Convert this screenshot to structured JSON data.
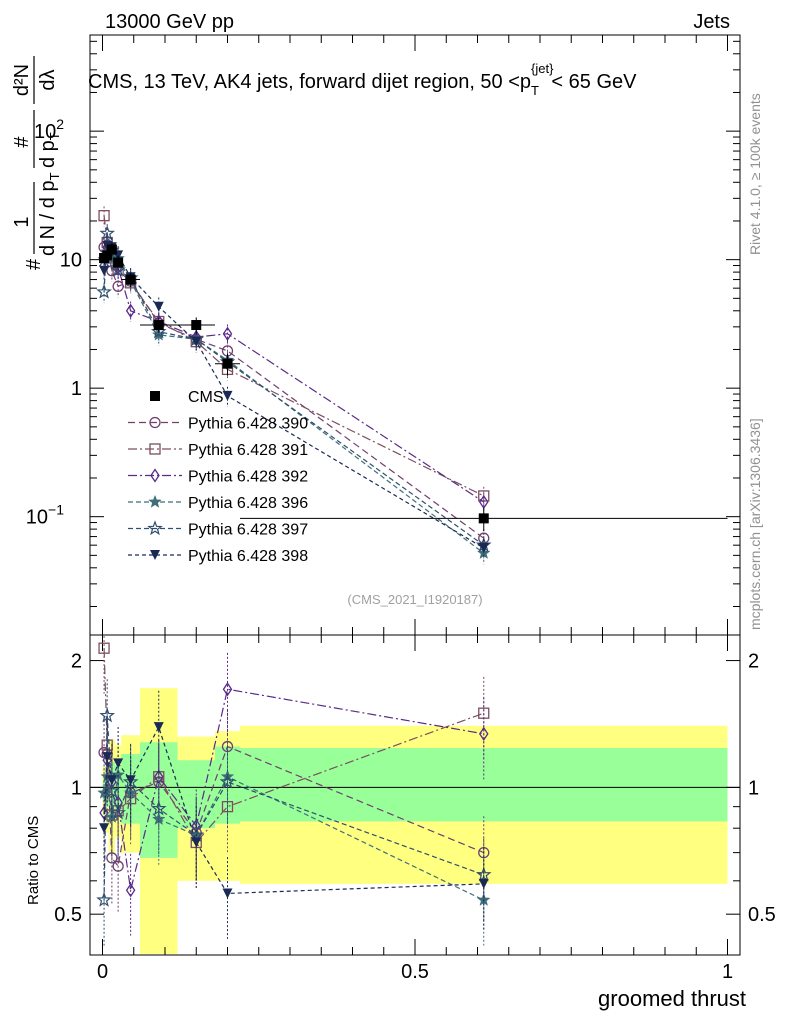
{
  "header": {
    "left": "13000 GeV pp",
    "right": "Jets",
    "title": "CMS, 13 TeV, AK4 jets, forward dijet region, 50 <p",
    "title_sub": "T",
    "title_sup": "{jet}",
    "title_tail": "< 65 GeV",
    "side_top": "Rivet 4.1.0, ≥ 100k events",
    "side_bottom": "mcplots.cern.ch [arXiv:1306.3436]",
    "analysis_id": "(CMS_2021_I1920187)"
  },
  "chart_data": [
    {
      "type": "line",
      "panel": "main",
      "yscale": "log",
      "ylim": [
        0.012,
        560
      ],
      "xlim": [
        -0.02,
        1.02
      ],
      "ylabel_parts": [
        "#",
        "1",
        "d N / d p",
        "T",
        "#",
        "d p",
        "T",
        "d²N",
        "dλ"
      ],
      "yticks": [
        {
          "value": 0.1,
          "label": "10",
          "sup": "−1"
        },
        {
          "value": 1,
          "label": "1",
          "sup": ""
        },
        {
          "value": 10,
          "label": "10",
          "sup": ""
        },
        {
          "value": 100,
          "label": "10",
          "sup": "2"
        }
      ],
      "x": [
        0.0025,
        0.0075,
        0.015,
        0.025,
        0.045,
        0.09,
        0.15,
        0.2,
        0.61
      ],
      "xerr": [
        0.0025,
        0.0025,
        0.005,
        0.005,
        0.015,
        0.03,
        0.03,
        0.02,
        0.39
      ],
      "cms": [
        10.3,
        10.8,
        12.0,
        9.5,
        7.0,
        3.1,
        3.1,
        1.55,
        0.097
      ],
      "cms_err": [
        1.2,
        1.3,
        1.4,
        1.2,
        0.9,
        0.4,
        0.45,
        0.3,
        0.02
      ],
      "series": [
        {
          "name": "Pythia 6.428 390",
          "color": "#6f3f70",
          "marker": "circle-open",
          "dash": "7,4",
          "values": [
            12.5,
            13.0,
            8.2,
            6.2,
            6.8,
            3.2,
            2.4,
            1.95,
            0.068
          ]
        },
        {
          "name": "Pythia 6.428 391",
          "color": "#7c4f60",
          "marker": "square-open",
          "dash": "9,3,2,3",
          "values": [
            22.0,
            13.6,
            10.3,
            8.4,
            6.6,
            3.3,
            2.3,
            1.4,
            0.145
          ]
        },
        {
          "name": "Pythia 6.428 392",
          "color": "#5a2a8a",
          "marker": "diamond-open",
          "dash": "9,3,2,3",
          "values": [
            9.0,
            12.5,
            12.4,
            8.7,
            4.0,
            3.3,
            2.5,
            2.65,
            0.13
          ]
        },
        {
          "name": "Pythia 6.428 396",
          "color": "#3f6e7a",
          "marker": "star-filled",
          "dash": "5,3",
          "values": [
            10.0,
            11.5,
            10.2,
            10.2,
            6.8,
            2.6,
            2.4,
            1.65,
            0.052
          ]
        },
        {
          "name": "Pythia 6.428 397",
          "color": "#2f4f6f",
          "marker": "star-open",
          "dash": "5,3",
          "values": [
            5.6,
            16.0,
            11.8,
            8.3,
            7.2,
            2.75,
            2.4,
            1.6,
            0.06
          ]
        },
        {
          "name": "Pythia 6.428 398",
          "color": "#1a2a55",
          "marker": "triangle-down",
          "dash": "4,3",
          "values": [
            8.2,
            12.8,
            12.5,
            10.8,
            7.3,
            4.3,
            2.3,
            0.87,
            0.057
          ]
        }
      ],
      "legend": {
        "position": "middle-left",
        "cms_label": "CMS"
      }
    },
    {
      "type": "line",
      "panel": "ratio",
      "ylabel": "Ratio to CMS",
      "yscale": "log",
      "ylim": [
        0.4,
        2.3
      ],
      "yticks": [
        {
          "value": 0.5,
          "label": "0.5"
        },
        {
          "value": 1,
          "label": "1"
        },
        {
          "value": 2,
          "label": "2"
        }
      ],
      "xlabel": "groomed thrust",
      "xticks": [
        {
          "value": 0,
          "label": "0"
        },
        {
          "value": 0.5,
          "label": "0.5"
        },
        {
          "value": 1,
          "label": "1"
        }
      ],
      "band_green": [
        [
          1.03,
          0.93
        ],
        [
          1.08,
          0.9
        ],
        [
          1.15,
          0.86
        ],
        [
          1.13,
          0.88
        ],
        [
          1.2,
          0.82
        ],
        [
          1.28,
          0.68
        ],
        [
          1.16,
          0.8
        ],
        [
          1.25,
          0.82
        ],
        [
          1.24,
          0.83
        ]
      ],
      "band_yellow": [
        [
          1.12,
          0.86
        ],
        [
          1.18,
          0.78
        ],
        [
          1.3,
          0.7
        ],
        [
          1.26,
          0.76
        ],
        [
          1.33,
          0.7
        ],
        [
          1.72,
          0.35
        ],
        [
          1.32,
          0.6
        ],
        [
          1.36,
          0.6
        ],
        [
          1.4,
          0.59
        ]
      ],
      "ratios": [
        [
          1.21,
          1.2,
          0.68,
          0.65,
          0.97,
          1.03,
          0.78,
          1.25,
          0.7
        ],
        [
          2.14,
          1.26,
          0.86,
          0.88,
          0.94,
          1.06,
          0.74,
          0.9,
          1.5
        ],
        [
          0.87,
          1.16,
          1.03,
          0.92,
          0.57,
          1.06,
          0.81,
          1.71,
          1.34
        ],
        [
          0.97,
          1.06,
          0.85,
          1.07,
          0.97,
          0.84,
          0.77,
          1.06,
          0.54
        ],
        [
          0.54,
          1.48,
          0.98,
          0.87,
          1.03,
          0.89,
          0.77,
          1.03,
          0.62
        ],
        [
          0.8,
          1.18,
          1.04,
          1.14,
          1.04,
          1.39,
          0.74,
          0.56,
          0.59
        ]
      ]
    }
  ]
}
